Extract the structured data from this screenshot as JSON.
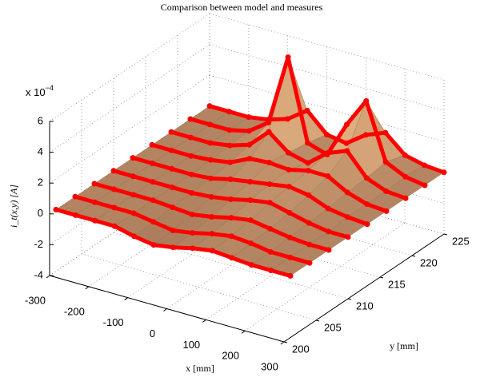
{
  "chart_data": {
    "type": "surface3d",
    "title": "Comparison between model and measures",
    "xlabel": "x [mm]",
    "ylabel": "y [mm]",
    "zlabel": "i_t(x,y) [A]",
    "z_multiplier": {
      "base": "x 10",
      "exponent": "−4"
    },
    "x": [
      -300,
      -250,
      -200,
      -150,
      -100,
      -50,
      0,
      50,
      100,
      150,
      200,
      250,
      300
    ],
    "series": [
      {
        "y": 201,
        "values": [
          0,
          0,
          0,
          0,
          -0.3,
          -0.5,
          -0.3,
          0,
          0.2,
          0.1,
          0,
          0,
          0
        ]
      },
      {
        "y": 204,
        "values": [
          0,
          0,
          0,
          0,
          -0.2,
          -0.4,
          -0.2,
          0.1,
          0.3,
          0.2,
          0,
          0,
          0
        ]
      },
      {
        "y": 207,
        "values": [
          0,
          0,
          0,
          0,
          -0.1,
          -0.2,
          0,
          0.3,
          0.5,
          0.3,
          0.1,
          0,
          0
        ]
      },
      {
        "y": 210,
        "values": [
          0,
          0,
          0,
          0,
          0,
          0.1,
          0.3,
          0.6,
          0.8,
          0.5,
          0.2,
          0,
          0
        ]
      },
      {
        "y": 213,
        "values": [
          0,
          0,
          0,
          0,
          0.1,
          0.4,
          0.6,
          0.8,
          1.0,
          0.8,
          0.3,
          0.1,
          0
        ]
      },
      {
        "y": 216,
        "values": [
          0,
          0,
          0,
          0.1,
          0.3,
          0.9,
          1.0,
          0.9,
          1.2,
          1.2,
          0.5,
          0.1,
          0
        ]
      },
      {
        "y": 219,
        "values": [
          0,
          0,
          0,
          0.2,
          0.6,
          1.8,
          0.8,
          0.5,
          1.5,
          2.0,
          0.6,
          0.1,
          0
        ]
      },
      {
        "y": 222,
        "values": [
          0,
          0,
          0,
          0.3,
          1.2,
          5.8,
          0.6,
          0.2,
          2.5,
          4.4,
          0.8,
          0.2,
          0
        ]
      },
      {
        "y": 225,
        "values": [
          0,
          0,
          0,
          0.2,
          0.6,
          1.5,
          0.3,
          0.1,
          1.0,
          1.5,
          0.4,
          0.1,
          0
        ]
      }
    ],
    "xlim": [
      -300,
      300
    ],
    "ylim": [
      200,
      225
    ],
    "zlim": [
      -4,
      6
    ],
    "xticks": [
      -300,
      -200,
      -100,
      0,
      100,
      200,
      300
    ],
    "yticks": [
      200,
      205,
      210,
      215,
      220,
      225
    ],
    "zticks": [
      -4,
      -2,
      0,
      2,
      4,
      6
    ],
    "grid": true,
    "colors": {
      "measures": "#ff0000",
      "surface_low": "#a87a5a",
      "surface_high": "#f7c48e",
      "mesh": "#7a5a40"
    }
  }
}
